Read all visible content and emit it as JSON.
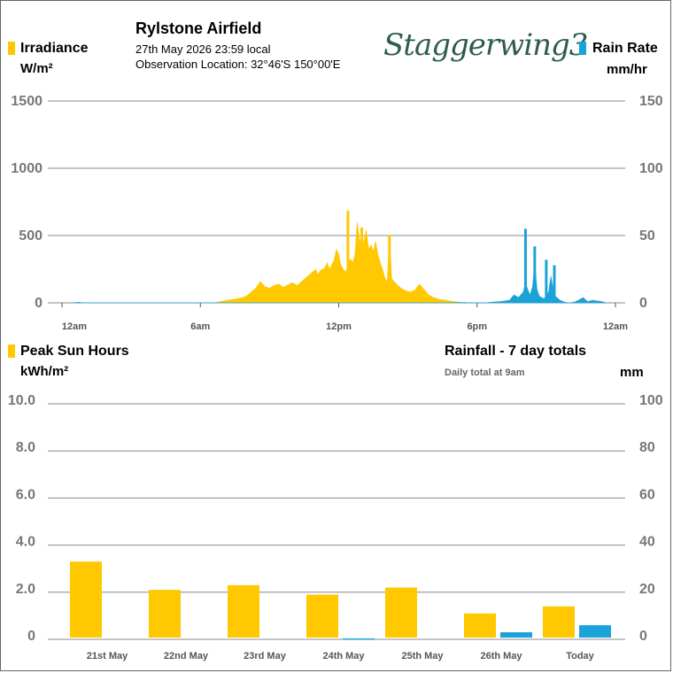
{
  "header": {
    "title": "Rylstone Airfield",
    "datetime": "27th May 2026  23:59 local",
    "location": "Observation Location: 32°46'S 150°00'E",
    "logo_text": "Staggerwing3"
  },
  "colors": {
    "irradiance": "#ffc800",
    "rain": "#1aa3d9",
    "grid": "#888888"
  },
  "chart_data": [
    {
      "type": "area",
      "series": [
        {
          "name": "Irradiance",
          "unit": "W/m²",
          "axis": "left",
          "color": "#ffc800",
          "points": [
            [
              6.6,
              0
            ],
            [
              6.8,
              8
            ],
            [
              7.0,
              15
            ],
            [
              7.2,
              20
            ],
            [
              7.5,
              28
            ],
            [
              7.8,
              38
            ],
            [
              8.0,
              50
            ],
            [
              8.2,
              80
            ],
            [
              8.4,
              110
            ],
            [
              8.6,
              160
            ],
            [
              8.8,
              120
            ],
            [
              9.0,
              110
            ],
            [
              9.2,
              130
            ],
            [
              9.4,
              140
            ],
            [
              9.6,
              115
            ],
            [
              9.8,
              135
            ],
            [
              10.0,
              150
            ],
            [
              10.2,
              130
            ],
            [
              10.4,
              160
            ],
            [
              10.6,
              190
            ],
            [
              10.8,
              220
            ],
            [
              11.0,
              250
            ],
            [
              11.1,
              210
            ],
            [
              11.2,
              240
            ],
            [
              11.4,
              260
            ],
            [
              11.5,
              300
            ],
            [
              11.6,
              250
            ],
            [
              11.8,
              320
            ],
            [
              11.9,
              400
            ],
            [
              12.0,
              360
            ],
            [
              12.1,
              280
            ],
            [
              12.2,
              250
            ],
            [
              12.3,
              230
            ],
            [
              12.4,
              270
            ],
            [
              12.5,
              330
            ],
            [
              12.6,
              300
            ],
            [
              12.7,
              350
            ],
            [
              12.8,
              600
            ],
            [
              12.9,
              480
            ],
            [
              13.0,
              410
            ],
            [
              13.1,
              470
            ],
            [
              13.2,
              540
            ],
            [
              13.3,
              400
            ],
            [
              13.4,
              430
            ],
            [
              13.5,
              380
            ],
            [
              13.6,
              460
            ],
            [
              13.7,
              360
            ],
            [
              13.8,
              300
            ],
            [
              13.9,
              250
            ],
            [
              14.0,
              190
            ],
            [
              14.1,
              150
            ],
            [
              14.2,
              500
            ],
            [
              14.3,
              180
            ],
            [
              14.5,
              140
            ],
            [
              14.7,
              110
            ],
            [
              14.9,
              90
            ],
            [
              15.1,
              80
            ],
            [
              15.3,
              95
            ],
            [
              15.5,
              140
            ],
            [
              15.7,
              100
            ],
            [
              15.9,
              60
            ],
            [
              16.1,
              40
            ],
            [
              16.4,
              25
            ],
            [
              16.8,
              15
            ],
            [
              17.2,
              5
            ],
            [
              17.4,
              0
            ]
          ],
          "spikes": [
            [
              12.4,
              685
            ],
            [
              13.0,
              560
            ],
            [
              14.2,
              505
            ]
          ]
        },
        {
          "name": "Rain Rate",
          "unit": "mm/hr",
          "axis": "right",
          "color": "#1aa3d9",
          "points": [
            [
              0.55,
              0
            ],
            [
              0.6,
              0.4
            ],
            [
              0.8,
              0.4
            ],
            [
              0.85,
              0
            ],
            [
              17.0,
              0
            ],
            [
              17.1,
              0.3
            ],
            [
              17.5,
              0.3
            ],
            [
              17.6,
              0
            ],
            [
              18.4,
              0
            ],
            [
              18.6,
              0.5
            ],
            [
              19.0,
              1
            ],
            [
              19.4,
              2
            ],
            [
              19.6,
              6
            ],
            [
              19.8,
              4
            ],
            [
              20.0,
              8
            ],
            [
              20.1,
              15
            ],
            [
              20.2,
              10
            ],
            [
              20.3,
              6
            ],
            [
              20.4,
              12
            ],
            [
              20.5,
              30
            ],
            [
              20.6,
              10
            ],
            [
              20.7,
              5
            ],
            [
              20.9,
              3
            ],
            [
              21.1,
              8
            ],
            [
              21.2,
              20
            ],
            [
              21.3,
              10
            ],
            [
              21.4,
              5
            ],
            [
              21.6,
              2
            ],
            [
              21.8,
              0.5
            ],
            [
              22.0,
              0
            ],
            [
              22.2,
              0.5
            ],
            [
              22.4,
              2
            ],
            [
              22.6,
              4
            ],
            [
              22.8,
              1
            ],
            [
              23.0,
              2
            ],
            [
              23.2,
              1.5
            ],
            [
              23.4,
              1
            ],
            [
              23.6,
              0
            ]
          ],
          "spikes": [
            [
              20.1,
              55
            ],
            [
              20.5,
              42
            ],
            [
              21.0,
              32
            ],
            [
              21.35,
              28
            ]
          ]
        }
      ],
      "x_ticks": [
        "12am",
        "6am",
        "12pm",
        "6pm",
        "12am"
      ],
      "xlim": [
        0,
        24
      ],
      "ylim_left": [
        0,
        1500
      ],
      "ylim_right": [
        0,
        150
      ],
      "y_ticks_left": [
        "0",
        "500",
        "1000",
        "1500"
      ],
      "y_ticks_right": [
        "0",
        "50",
        "100",
        "150"
      ],
      "grid": true
    },
    {
      "type": "bar",
      "title": "Rainfall - 7 day totals",
      "subtitle": "Daily total at 9am",
      "categories": [
        "21st May",
        "22nd May",
        "23rd May",
        "24th May",
        "25th May",
        "26th May",
        "Today"
      ],
      "series": [
        {
          "name": "Peak Sun Hours",
          "unit": "kWh/m²",
          "axis": "left",
          "color": "#ffc800",
          "values": [
            3.3,
            2.1,
            2.3,
            1.9,
            2.2,
            1.1,
            1.4
          ]
        },
        {
          "name": "Rainfall",
          "unit": "mm",
          "axis": "right",
          "color": "#1aa3d9",
          "values": [
            0,
            0,
            0,
            0.4,
            0,
            3,
            6
          ]
        }
      ],
      "ylim_left": [
        0,
        10
      ],
      "ylim_right": [
        0,
        100
      ],
      "y_ticks_left": [
        "0",
        "2.0",
        "4.0",
        "6.0",
        "8.0",
        "10.0"
      ],
      "y_ticks_right": [
        "0",
        "20",
        "40",
        "60",
        "80",
        "100"
      ],
      "grid": true
    }
  ],
  "labels": {
    "irradiance": "Irradiance",
    "irradiance_unit": "W/m²",
    "rain_rate": "Rain Rate",
    "rain_rate_unit": "mm/hr",
    "peak_sun": "Peak Sun Hours",
    "peak_sun_unit": "kWh/m²",
    "rainfall_unit": "mm"
  }
}
